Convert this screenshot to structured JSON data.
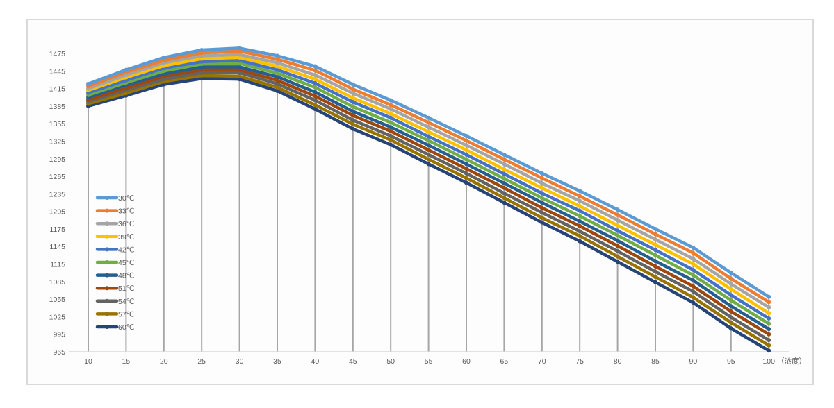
{
  "chart_data": {
    "type": "line",
    "title": "",
    "xlabel": "（浓度）",
    "ylabel": "",
    "x": [
      10,
      15,
      20,
      25,
      30,
      35,
      40,
      45,
      50,
      55,
      60,
      65,
      70,
      75,
      80,
      85,
      90,
      95,
      100
    ],
    "ylim": [
      965,
      1475
    ],
    "yticks": [
      965,
      995,
      1025,
      1055,
      1085,
      1115,
      1145,
      1175,
      1205,
      1235,
      1265,
      1295,
      1325,
      1355,
      1385,
      1415,
      1445,
      1475
    ],
    "grid": "vertical drop lines at each x category",
    "legend_position": "inside left",
    "series": [
      {
        "name": "30℃",
        "color": "#5b9bd5",
        "values": [
          1423,
          1447,
          1468,
          1481,
          1484,
          1471,
          1453,
          1422,
          1395,
          1365,
          1334,
          1302,
          1270,
          1240,
          1208,
          1175,
          1143,
          1100,
          1059
        ]
      },
      {
        "name": "33℃",
        "color": "#ed7d31",
        "values": [
          1419,
          1443,
          1463,
          1476,
          1479,
          1465,
          1446,
          1414,
          1387,
          1357,
          1326,
          1294,
          1262,
          1231,
          1199,
          1166,
          1134,
          1090,
          1050
        ]
      },
      {
        "name": "36℃",
        "color": "#a5a5a5",
        "values": [
          1415,
          1438,
          1459,
          1471,
          1473,
          1459,
          1438,
          1407,
          1380,
          1349,
          1318,
          1286,
          1253,
          1223,
          1190,
          1157,
          1124,
          1081,
          1041
        ]
      },
      {
        "name": "39℃",
        "color": "#ffc000",
        "values": [
          1412,
          1434,
          1454,
          1466,
          1468,
          1453,
          1431,
          1399,
          1372,
          1341,
          1310,
          1277,
          1245,
          1214,
          1181,
          1148,
          1115,
          1072,
          1031
        ]
      },
      {
        "name": "42℃",
        "color": "#4472c4",
        "values": [
          1408,
          1429,
          1450,
          1461,
          1463,
          1447,
          1424,
          1392,
          1365,
          1333,
          1302,
          1269,
          1236,
          1206,
          1172,
          1139,
          1105,
          1062,
          1022
        ]
      },
      {
        "name": "45℃",
        "color": "#70ad47",
        "values": [
          1404,
          1425,
          1445,
          1457,
          1458,
          1441,
          1417,
          1384,
          1357,
          1326,
          1294,
          1261,
          1228,
          1197,
          1164,
          1130,
          1096,
          1053,
          1013
        ]
      },
      {
        "name": "48℃",
        "color": "#255e91",
        "values": [
          1400,
          1421,
          1440,
          1452,
          1452,
          1435,
          1409,
          1376,
          1349,
          1318,
          1286,
          1253,
          1220,
          1188,
          1155,
          1120,
          1087,
          1043,
          1004
        ]
      },
      {
        "name": "51℃",
        "color": "#9e480e",
        "values": [
          1396,
          1416,
          1436,
          1447,
          1447,
          1429,
          1402,
          1369,
          1342,
          1310,
          1278,
          1245,
          1211,
          1180,
          1146,
          1111,
          1077,
          1034,
          995
        ]
      },
      {
        "name": "54℃",
        "color": "#636363",
        "values": [
          1393,
          1412,
          1431,
          1442,
          1442,
          1423,
          1395,
          1361,
          1334,
          1302,
          1270,
          1236,
          1203,
          1171,
          1137,
          1102,
          1068,
          1024,
          985
        ]
      },
      {
        "name": "57℃",
        "color": "#997300",
        "values": [
          1389,
          1407,
          1427,
          1437,
          1436,
          1417,
          1387,
          1354,
          1327,
          1294,
          1262,
          1228,
          1194,
          1163,
          1128,
          1093,
          1058,
          1015,
          976
        ]
      },
      {
        "name": "60℃",
        "color": "#264478",
        "values": [
          1385,
          1403,
          1422,
          1432,
          1431,
          1411,
          1380,
          1346,
          1319,
          1286,
          1254,
          1220,
          1186,
          1154,
          1119,
          1084,
          1049,
          1005,
          967
        ]
      }
    ]
  },
  "axis": {
    "x_unit_label": "（浓度）"
  }
}
